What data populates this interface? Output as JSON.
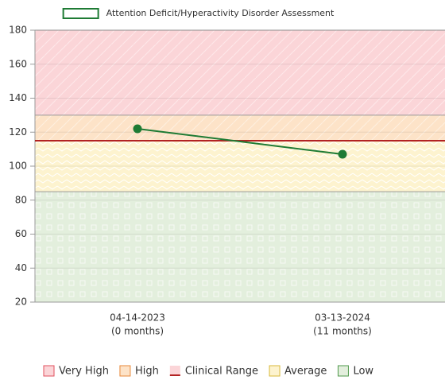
{
  "chart_data": {
    "type": "line",
    "series": [
      {
        "name": "Attention Deficit/Hyperactivity Disorder Assessment",
        "color": "#1e7b34",
        "values": [
          122,
          107
        ]
      }
    ],
    "categories": [
      "04-14-2023",
      "03-13-2024"
    ],
    "category_sublabels": [
      "(0 months)",
      "(11 months)"
    ],
    "ylim": [
      20,
      180
    ],
    "yticks": [
      20,
      40,
      60,
      80,
      100,
      120,
      140,
      160,
      180
    ],
    "grid": true,
    "bands": [
      {
        "name": "Very High",
        "color": "#fbd5d8",
        "edge": "#e0505e",
        "range": [
          130,
          180
        ]
      },
      {
        "name": "High",
        "color": "#fde3c8",
        "edge": "#e8893a",
        "range": [
          115,
          130
        ]
      },
      {
        "name": "Average",
        "color": "#fdf3cf",
        "edge": "#d9b93a",
        "range": [
          85,
          115
        ]
      },
      {
        "name": "Low",
        "color": "#e3efdd",
        "edge": "#4f9a4b",
        "range": [
          20,
          85
        ]
      }
    ],
    "threshold": {
      "name": "Clinical Range",
      "value": 115,
      "color": "#b22222"
    }
  }
}
